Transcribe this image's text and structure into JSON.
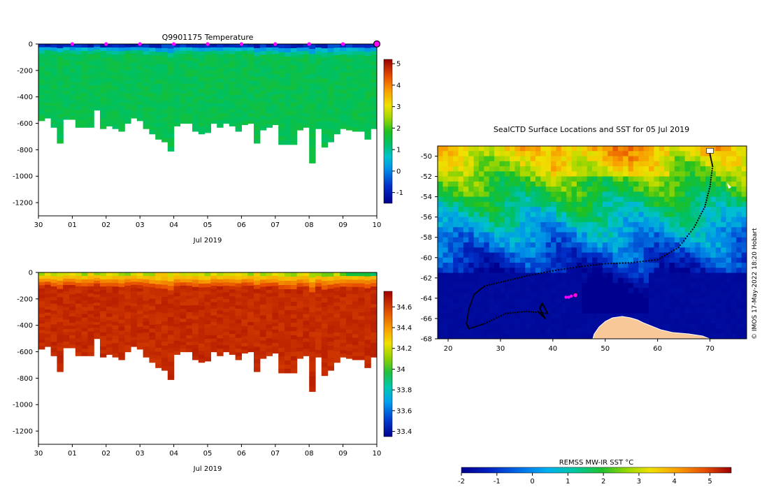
{
  "chart_data": [
    {
      "type": "heatmap",
      "title": "Q9901175  Temperature",
      "variable": "temperature",
      "xlabel": "Jul 2019",
      "x_ticks": [
        "30",
        "01",
        "02",
        "03",
        "04",
        "05",
        "06",
        "07",
        "08",
        "09",
        "10"
      ],
      "x_range_days": [
        0,
        10
      ],
      "y_ticks": [
        "0",
        "-200",
        "-400",
        "-600",
        "-800",
        "-1000",
        "-1200"
      ],
      "y_tick_values": [
        0,
        -200,
        -400,
        -600,
        -800,
        -1000,
        -1200
      ],
      "ylim": [
        -1300,
        0
      ],
      "colorbar": {
        "ticks": [
          "-1",
          "0",
          "1",
          "2",
          "3",
          "4",
          "5"
        ],
        "tick_values": [
          -1,
          0,
          1,
          2,
          3,
          4,
          5
        ],
        "range": [
          -1.5,
          5.2
        ]
      },
      "surface_markers_days": [
        1,
        2,
        3,
        4,
        5,
        6,
        7,
        8,
        9
      ],
      "latest_marker_day": 10,
      "profile_depths_m": [
        580,
        560,
        630,
        750,
        570,
        570,
        630,
        630,
        630,
        500,
        640,
        620,
        640,
        660,
        600,
        560,
        580,
        640,
        680,
        720,
        740,
        810,
        620,
        600,
        600,
        660,
        680,
        670,
        600,
        630,
        600,
        620,
        660,
        610,
        600,
        750,
        650,
        630,
        610,
        760,
        760,
        760,
        650,
        630,
        900,
        640,
        780,
        740,
        680,
        640,
        650,
        660,
        660,
        720,
        640
      ],
      "surface_value": -0.8,
      "interior_value": 1.6
    },
    {
      "type": "heatmap",
      "title": "",
      "variable": "salinity",
      "xlabel": "Jul 2019",
      "x_ticks": [
        "30",
        "01",
        "02",
        "03",
        "04",
        "05",
        "06",
        "07",
        "08",
        "09",
        "10"
      ],
      "x_range_days": [
        0,
        10
      ],
      "y_ticks": [
        "0",
        "-200",
        "-400",
        "-600",
        "-800",
        "-1000",
        "-1200"
      ],
      "y_tick_values": [
        0,
        -200,
        -400,
        -600,
        -800,
        -1000,
        -1200
      ],
      "ylim": [
        -1300,
        0
      ],
      "colorbar": {
        "ticks": [
          "34.6",
          "34.4",
          "34.2",
          "34",
          "33.8",
          "33.6",
          "33.4"
        ],
        "tick_values": [
          34.6,
          34.4,
          34.2,
          34.0,
          33.8,
          33.6,
          33.4
        ],
        "range": [
          33.35,
          34.75
        ]
      },
      "profile_depths_m": [
        580,
        560,
        630,
        750,
        570,
        570,
        630,
        630,
        630,
        500,
        640,
        620,
        640,
        660,
        600,
        560,
        580,
        640,
        680,
        720,
        740,
        810,
        620,
        600,
        600,
        660,
        680,
        670,
        600,
        630,
        600,
        620,
        660,
        610,
        600,
        750,
        650,
        630,
        610,
        760,
        760,
        760,
        650,
        630,
        900,
        640,
        780,
        740,
        680,
        640,
        650,
        660,
        660,
        720,
        640
      ],
      "surface_value": 34.2,
      "interior_value": 34.7
    },
    {
      "type": "map",
      "title": "SealCTD Surface Locations and SST for 05 Jul 2019",
      "x_ticks": [
        "20",
        "30",
        "40",
        "50",
        "60",
        "70"
      ],
      "x_tick_values": [
        20,
        30,
        40,
        50,
        60,
        70
      ],
      "xlim": [
        18,
        77
      ],
      "y_ticks": [
        "-50",
        "-52",
        "-54",
        "-56",
        "-58",
        "-60",
        "-62",
        "-64",
        "-66",
        "-68"
      ],
      "y_tick_values": [
        -50,
        -52,
        -54,
        -56,
        -58,
        -60,
        -62,
        -64,
        -66,
        -68
      ],
      "ylim": [
        -68,
        -49
      ],
      "colorbar_label": "REMSS MW-IR SST °C",
      "colorbar_ticks": [
        "-2",
        "-1",
        "0",
        "1",
        "2",
        "3",
        "4",
        "5"
      ],
      "colorbar_tick_values": [
        -2,
        -1,
        0,
        1,
        2,
        3,
        4,
        5
      ],
      "colorbar_range": [
        -2,
        5.6
      ],
      "credit": "© IMOS 17-May-2022 18:20 Hobart",
      "track": [
        [
          70,
          -49.8
        ],
        [
          70.5,
          -51
        ],
        [
          70,
          -53
        ],
        [
          69,
          -55
        ],
        [
          67,
          -57
        ],
        [
          64,
          -59
        ],
        [
          60,
          -60.2
        ],
        [
          55,
          -60.5
        ],
        [
          50,
          -60.6
        ],
        [
          45,
          -60.9
        ],
        [
          40,
          -61.3
        ],
        [
          35,
          -61.8
        ],
        [
          31,
          -62.3
        ],
        [
          27,
          -62.8
        ],
        [
          25,
          -63.6
        ],
        [
          24,
          -65
        ],
        [
          23.5,
          -66.5
        ],
        [
          24,
          -67
        ],
        [
          27,
          -66.5
        ],
        [
          31,
          -65.5
        ],
        [
          35,
          -65.3
        ],
        [
          39,
          -65.5
        ],
        [
          38,
          -64.5
        ],
        [
          37.5,
          -65
        ],
        [
          38.5,
          -66
        ],
        [
          37,
          -65.2
        ]
      ],
      "current_positions": [
        [
          42.5,
          -63.9
        ],
        [
          43,
          -63.9
        ],
        [
          43.5,
          -63.8
        ],
        [
          44.3,
          -63.7
        ]
      ]
    }
  ]
}
